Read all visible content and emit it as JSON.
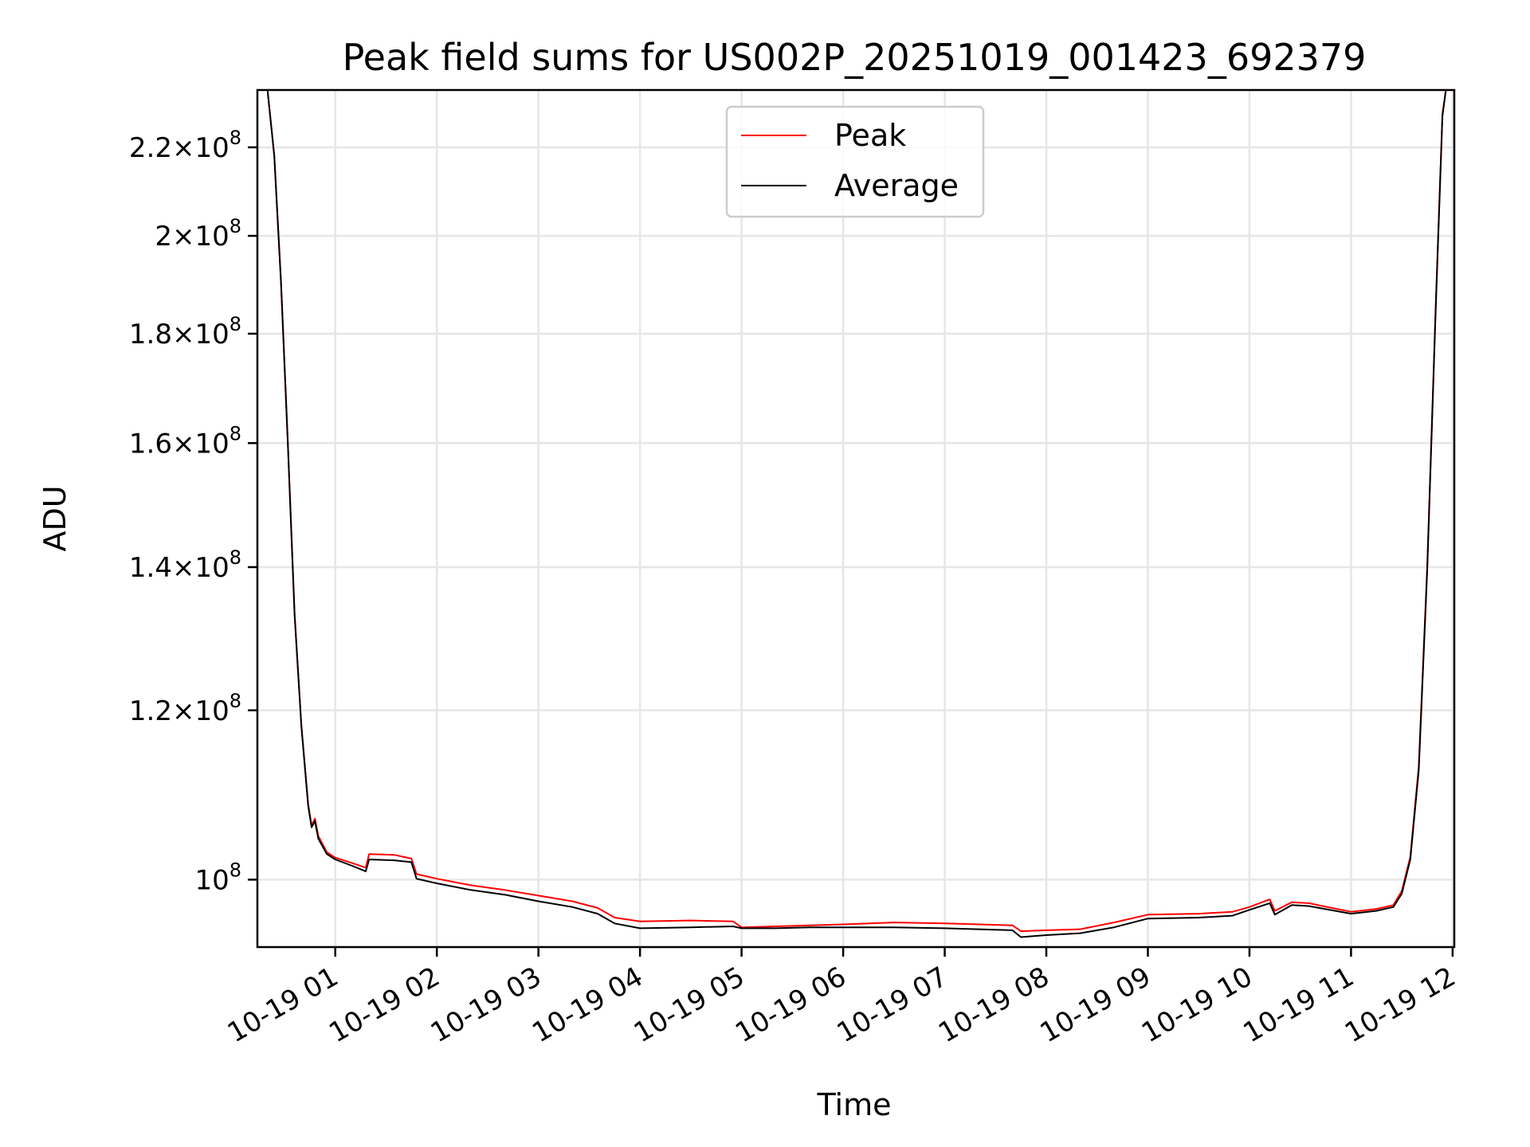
{
  "chart_data": {
    "type": "line",
    "title": "Peak field sums for US002P_20251019_001423_692379",
    "xlabel": "Time",
    "ylabel": "ADU",
    "y_scale": "log",
    "ylim": [
      93000000,
      234000000
    ],
    "xlim": [
      "2025-10-19 00:14",
      "2025-10-19 12:01"
    ],
    "x_ticks": [
      {
        "t": "2025-10-19 01:00",
        "label": "10-19 01"
      },
      {
        "t": "2025-10-19 02:00",
        "label": "10-19 02"
      },
      {
        "t": "2025-10-19 03:00",
        "label": "10-19 03"
      },
      {
        "t": "2025-10-19 04:00",
        "label": "10-19 04"
      },
      {
        "t": "2025-10-19 05:00",
        "label": "10-19 05"
      },
      {
        "t": "2025-10-19 06:00",
        "label": "10-19 06"
      },
      {
        "t": "2025-10-19 07:00",
        "label": "10-19 07"
      },
      {
        "t": "2025-10-19 08:00",
        "label": "10-19 08"
      },
      {
        "t": "2025-10-19 09:00",
        "label": "10-19 09"
      },
      {
        "t": "2025-10-19 10:00",
        "label": "10-19 10"
      },
      {
        "t": "2025-10-19 11:00",
        "label": "10-19 11"
      },
      {
        "t": "2025-10-19 12:00",
        "label": "10-19 12"
      }
    ],
    "y_ticks": [
      {
        "value": 100000000,
        "mant": "",
        "exp": "8"
      },
      {
        "value": 120000000,
        "mant": "1.2",
        "exp": "8"
      },
      {
        "value": 140000000,
        "mant": "1.4",
        "exp": "8"
      },
      {
        "value": 160000000,
        "mant": "1.6",
        "exp": "8"
      },
      {
        "value": 180000000,
        "mant": "1.8",
        "exp": "8"
      },
      {
        "value": 200000000,
        "mant": "2",
        "exp": "8"
      },
      {
        "value": 220000000,
        "mant": "2.2",
        "exp": "8"
      }
    ],
    "grid": true,
    "legend": {
      "placement": "upper-center"
    },
    "series": [
      {
        "name": "Peak",
        "color": "#ff0000",
        "points": [
          [
            "2025-10-19 00:14",
            234000000
          ],
          [
            "2025-10-19 00:20",
            234000000
          ],
          [
            "2025-10-19 00:24",
            218000000
          ],
          [
            "2025-10-19 00:28",
            190000000
          ],
          [
            "2025-10-19 00:32",
            160000000
          ],
          [
            "2025-10-19 00:36",
            133000000
          ],
          [
            "2025-10-19 00:40",
            118000000
          ],
          [
            "2025-10-19 00:44",
            108500000
          ],
          [
            "2025-10-19 00:46",
            106000000
          ],
          [
            "2025-10-19 00:48",
            106800000
          ],
          [
            "2025-10-19 00:50",
            104800000
          ],
          [
            "2025-10-19 00:55",
            103000000
          ],
          [
            "2025-10-19 01:00",
            102400000
          ],
          [
            "2025-10-19 01:10",
            101800000
          ],
          [
            "2025-10-19 01:18",
            101300000
          ],
          [
            "2025-10-19 01:20",
            102800000
          ],
          [
            "2025-10-19 01:35",
            102700000
          ],
          [
            "2025-10-19 01:45",
            102300000
          ],
          [
            "2025-10-19 01:48",
            100600000
          ],
          [
            "2025-10-19 02:00",
            100100000
          ],
          [
            "2025-10-19 02:20",
            99400000
          ],
          [
            "2025-10-19 02:40",
            98900000
          ],
          [
            "2025-10-19 03:00",
            98300000
          ],
          [
            "2025-10-19 03:20",
            97700000
          ],
          [
            "2025-10-19 03:35",
            97000000
          ],
          [
            "2025-10-19 03:45",
            96000000
          ],
          [
            "2025-10-19 04:00",
            95600000
          ],
          [
            "2025-10-19 04:30",
            95700000
          ],
          [
            "2025-10-19 04:55",
            95600000
          ],
          [
            "2025-10-19 05:00",
            95000000
          ],
          [
            "2025-10-19 05:20",
            95100000
          ],
          [
            "2025-10-19 05:40",
            95200000
          ],
          [
            "2025-10-19 06:00",
            95300000
          ],
          [
            "2025-10-19 06:30",
            95500000
          ],
          [
            "2025-10-19 07:00",
            95400000
          ],
          [
            "2025-10-19 07:20",
            95300000
          ],
          [
            "2025-10-19 07:40",
            95200000
          ],
          [
            "2025-10-19 07:45",
            94600000
          ],
          [
            "2025-10-19 08:00",
            94700000
          ],
          [
            "2025-10-19 08:20",
            94800000
          ],
          [
            "2025-10-19 08:40",
            95500000
          ],
          [
            "2025-10-19 09:00",
            96300000
          ],
          [
            "2025-10-19 09:30",
            96400000
          ],
          [
            "2025-10-19 09:50",
            96600000
          ],
          [
            "2025-10-19 10:00",
            97100000
          ],
          [
            "2025-10-19 10:12",
            97900000
          ],
          [
            "2025-10-19 10:15",
            96700000
          ],
          [
            "2025-10-19 10:25",
            97600000
          ],
          [
            "2025-10-19 10:35",
            97500000
          ],
          [
            "2025-10-19 11:00",
            96600000
          ],
          [
            "2025-10-19 11:15",
            96900000
          ],
          [
            "2025-10-19 11:25",
            97300000
          ],
          [
            "2025-10-19 11:30",
            98800000
          ],
          [
            "2025-10-19 11:35",
            102500000
          ],
          [
            "2025-10-19 11:40",
            113000000
          ],
          [
            "2025-10-19 11:45",
            140000000
          ],
          [
            "2025-10-19 11:50",
            185000000
          ],
          [
            "2025-10-19 11:54",
            228000000
          ],
          [
            "2025-10-19 11:56",
            234000000
          ],
          [
            "2025-10-19 12:01",
            234000000
          ]
        ]
      },
      {
        "name": "Average",
        "color": "#000000",
        "points": [
          [
            "2025-10-19 00:14",
            234000000
          ],
          [
            "2025-10-19 00:20",
            234000000
          ],
          [
            "2025-10-19 00:24",
            218000000
          ],
          [
            "2025-10-19 00:28",
            190000000
          ],
          [
            "2025-10-19 00:32",
            160000000
          ],
          [
            "2025-10-19 00:36",
            133000000
          ],
          [
            "2025-10-19 00:40",
            118000000
          ],
          [
            "2025-10-19 00:44",
            108300000
          ],
          [
            "2025-10-19 00:46",
            105800000
          ],
          [
            "2025-10-19 00:48",
            106500000
          ],
          [
            "2025-10-19 00:50",
            104500000
          ],
          [
            "2025-10-19 00:55",
            102800000
          ],
          [
            "2025-10-19 01:00",
            102200000
          ],
          [
            "2025-10-19 01:10",
            101500000
          ],
          [
            "2025-10-19 01:18",
            100900000
          ],
          [
            "2025-10-19 01:20",
            102200000
          ],
          [
            "2025-10-19 01:35",
            102100000
          ],
          [
            "2025-10-19 01:45",
            101900000
          ],
          [
            "2025-10-19 01:48",
            100100000
          ],
          [
            "2025-10-19 02:00",
            99600000
          ],
          [
            "2025-10-19 02:20",
            98900000
          ],
          [
            "2025-10-19 02:40",
            98400000
          ],
          [
            "2025-10-19 03:00",
            97700000
          ],
          [
            "2025-10-19 03:20",
            97100000
          ],
          [
            "2025-10-19 03:35",
            96400000
          ],
          [
            "2025-10-19 03:45",
            95400000
          ],
          [
            "2025-10-19 04:00",
            94900000
          ],
          [
            "2025-10-19 04:30",
            95000000
          ],
          [
            "2025-10-19 04:55",
            95100000
          ],
          [
            "2025-10-19 05:00",
            94900000
          ],
          [
            "2025-10-19 05:20",
            94900000
          ],
          [
            "2025-10-19 05:40",
            95000000
          ],
          [
            "2025-10-19 06:00",
            95000000
          ],
          [
            "2025-10-19 06:30",
            95000000
          ],
          [
            "2025-10-19 07:00",
            94900000
          ],
          [
            "2025-10-19 07:20",
            94800000
          ],
          [
            "2025-10-19 07:40",
            94700000
          ],
          [
            "2025-10-19 07:45",
            94000000
          ],
          [
            "2025-10-19 08:00",
            94200000
          ],
          [
            "2025-10-19 08:20",
            94400000
          ],
          [
            "2025-10-19 08:40",
            95000000
          ],
          [
            "2025-10-19 09:00",
            95900000
          ],
          [
            "2025-10-19 09:30",
            96000000
          ],
          [
            "2025-10-19 09:50",
            96200000
          ],
          [
            "2025-10-19 10:00",
            96800000
          ],
          [
            "2025-10-19 10:12",
            97500000
          ],
          [
            "2025-10-19 10:15",
            96300000
          ],
          [
            "2025-10-19 10:25",
            97300000
          ],
          [
            "2025-10-19 10:35",
            97200000
          ],
          [
            "2025-10-19 11:00",
            96400000
          ],
          [
            "2025-10-19 11:15",
            96700000
          ],
          [
            "2025-10-19 11:25",
            97100000
          ],
          [
            "2025-10-19 11:30",
            98500000
          ],
          [
            "2025-10-19 11:35",
            102200000
          ],
          [
            "2025-10-19 11:40",
            112500000
          ],
          [
            "2025-10-19 11:45",
            139500000
          ],
          [
            "2025-10-19 11:50",
            184500000
          ],
          [
            "2025-10-19 11:54",
            227500000
          ],
          [
            "2025-10-19 11:56",
            234000000
          ],
          [
            "2025-10-19 12:01",
            234000000
          ]
        ]
      }
    ]
  }
}
